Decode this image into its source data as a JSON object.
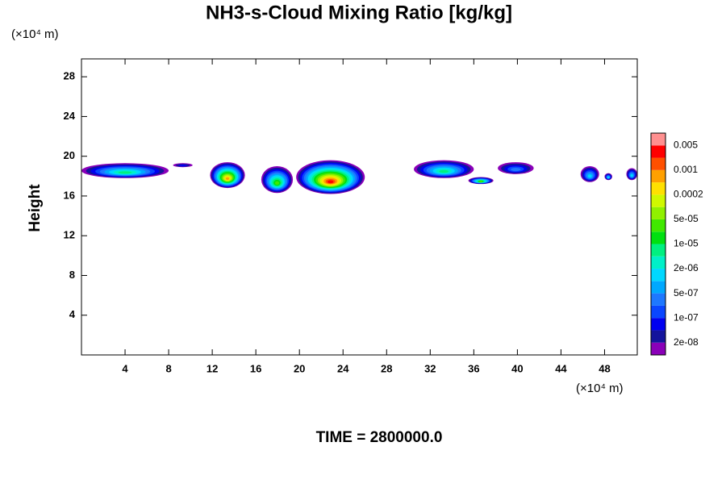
{
  "chart_data": {
    "type": "contour",
    "title": "NH3-s-Cloud Mixing Ratio [kg/kg]",
    "y_unit": "(×10⁴ m)",
    "x_unit": "(×10⁴ m)",
    "ylabel": "Height",
    "footer": "TIME = 2800000.0",
    "xlim": [
      0,
      51
    ],
    "ylim": [
      0,
      29.8
    ],
    "xticks": [
      4,
      8,
      12,
      16,
      20,
      24,
      28,
      32,
      36,
      40,
      44,
      48
    ],
    "yticks": [
      4,
      8,
      12,
      16,
      20,
      24,
      28
    ],
    "colorbar": {
      "colors": [
        "#8a00b8",
        "#14149c",
        "#0000f0",
        "#0a46ff",
        "#1e78ff",
        "#00a8ff",
        "#00d8ff",
        "#00f0c8",
        "#00f080",
        "#00e010",
        "#40e800",
        "#90f000",
        "#d0f800",
        "#ffe000",
        "#ffa000",
        "#ff5000",
        "#ff0000",
        "#ff9090"
      ],
      "ticks": [
        {
          "value": 2e-08,
          "label": "2e-08"
        },
        {
          "value": 1e-07,
          "label": "1e-07"
        },
        {
          "value": 5e-07,
          "label": "5e-07"
        },
        {
          "value": 2e-06,
          "label": "2e-06"
        },
        {
          "value": 1e-05,
          "label": "1e-05"
        },
        {
          "value": 5e-05,
          "label": "5e-05"
        },
        0.0002,
        0.001,
        0.005
      ]
    },
    "clouds": [
      {
        "x": [
          0,
          8
        ],
        "y": [
          17.8,
          19.3
        ],
        "peak": 2e-06
      },
      {
        "x": [
          8.4,
          10.2
        ],
        "y": [
          18.9,
          19.3
        ],
        "peak": 2e-08
      },
      {
        "x": [
          11.8,
          15
        ],
        "y": [
          16.8,
          19.4
        ],
        "peak": 0.0002
      },
      {
        "x": [
          16.5,
          19.4
        ],
        "y": [
          16.3,
          19.0
        ],
        "peak": 1e-05
      },
      {
        "x": [
          19.7,
          26
        ],
        "y": [
          16.2,
          19.6
        ],
        "peak": 0.001
      },
      {
        "x": [
          30.5,
          36
        ],
        "y": [
          17.8,
          19.6
        ],
        "peak": 2e-06
      },
      {
        "x": [
          35.5,
          37.8
        ],
        "y": [
          17.2,
          17.9
        ],
        "peak": 1e-05
      },
      {
        "x": [
          38.2,
          41.5
        ],
        "y": [
          18.2,
          19.4
        ],
        "peak": 1e-07
      },
      {
        "x": [
          45.8,
          47.5
        ],
        "y": [
          17.4,
          19.0
        ],
        "peak": 5e-07
      },
      {
        "x": [
          48,
          48.7
        ],
        "y": [
          17.6,
          18.3
        ],
        "peak": 5e-07
      },
      {
        "x": [
          50,
          51
        ],
        "y": [
          17.6,
          18.8
        ],
        "peak": 5e-07
      }
    ]
  }
}
